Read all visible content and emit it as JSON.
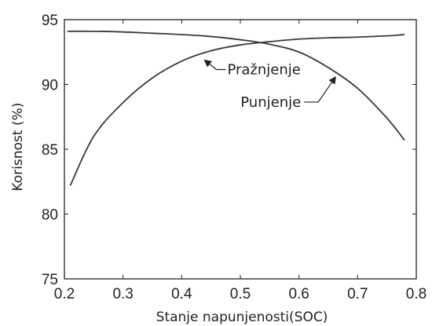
{
  "chart_data": {
    "type": "line",
    "title": "",
    "xlabel": "Stanje napunjenosti(SOC)",
    "ylabel": "Korisnost (%)",
    "xlim": [
      0.2,
      0.8
    ],
    "ylim": [
      75,
      95
    ],
    "xticks": [
      0.2,
      0.3,
      0.4,
      0.5,
      0.6,
      0.7,
      0.8
    ],
    "yticks": [
      75,
      80,
      85,
      90,
      95
    ],
    "xtick_labels": [
      "0.2",
      "0.3",
      "0.4",
      "0.5",
      "0.6",
      "0.7",
      "0.8"
    ],
    "ytick_labels": [
      "75",
      "80",
      "85",
      "90",
      "95"
    ],
    "grid": false,
    "legend": false,
    "series": [
      {
        "name": "Pražnjenje",
        "color": "#3a3a3a",
        "x": [
          0.205,
          0.25,
          0.3,
          0.35,
          0.4,
          0.45,
          0.5,
          0.55,
          0.6,
          0.65,
          0.7,
          0.75,
          0.78
        ],
        "y": [
          94.1,
          94.1,
          94.05,
          93.95,
          93.85,
          93.7,
          93.45,
          93.1,
          92.5,
          91.3,
          89.7,
          87.4,
          85.7
        ]
      },
      {
        "name": "Punjenje",
        "color": "#3a3a3a",
        "x": [
          0.21,
          0.25,
          0.3,
          0.35,
          0.4,
          0.45,
          0.5,
          0.55,
          0.6,
          0.65,
          0.7,
          0.75,
          0.78
        ],
        "y": [
          82.2,
          86.0,
          88.6,
          90.5,
          91.8,
          92.6,
          93.05,
          93.3,
          93.5,
          93.6,
          93.65,
          93.75,
          93.85
        ]
      }
    ],
    "annotations": [
      {
        "text": "Pražnjenje",
        "series": 0,
        "arrow_to": [
          0.435,
          92.0
        ]
      },
      {
        "text": "Punjenje",
        "series": 1,
        "arrow_to": [
          0.665,
          90.7
        ]
      }
    ]
  }
}
